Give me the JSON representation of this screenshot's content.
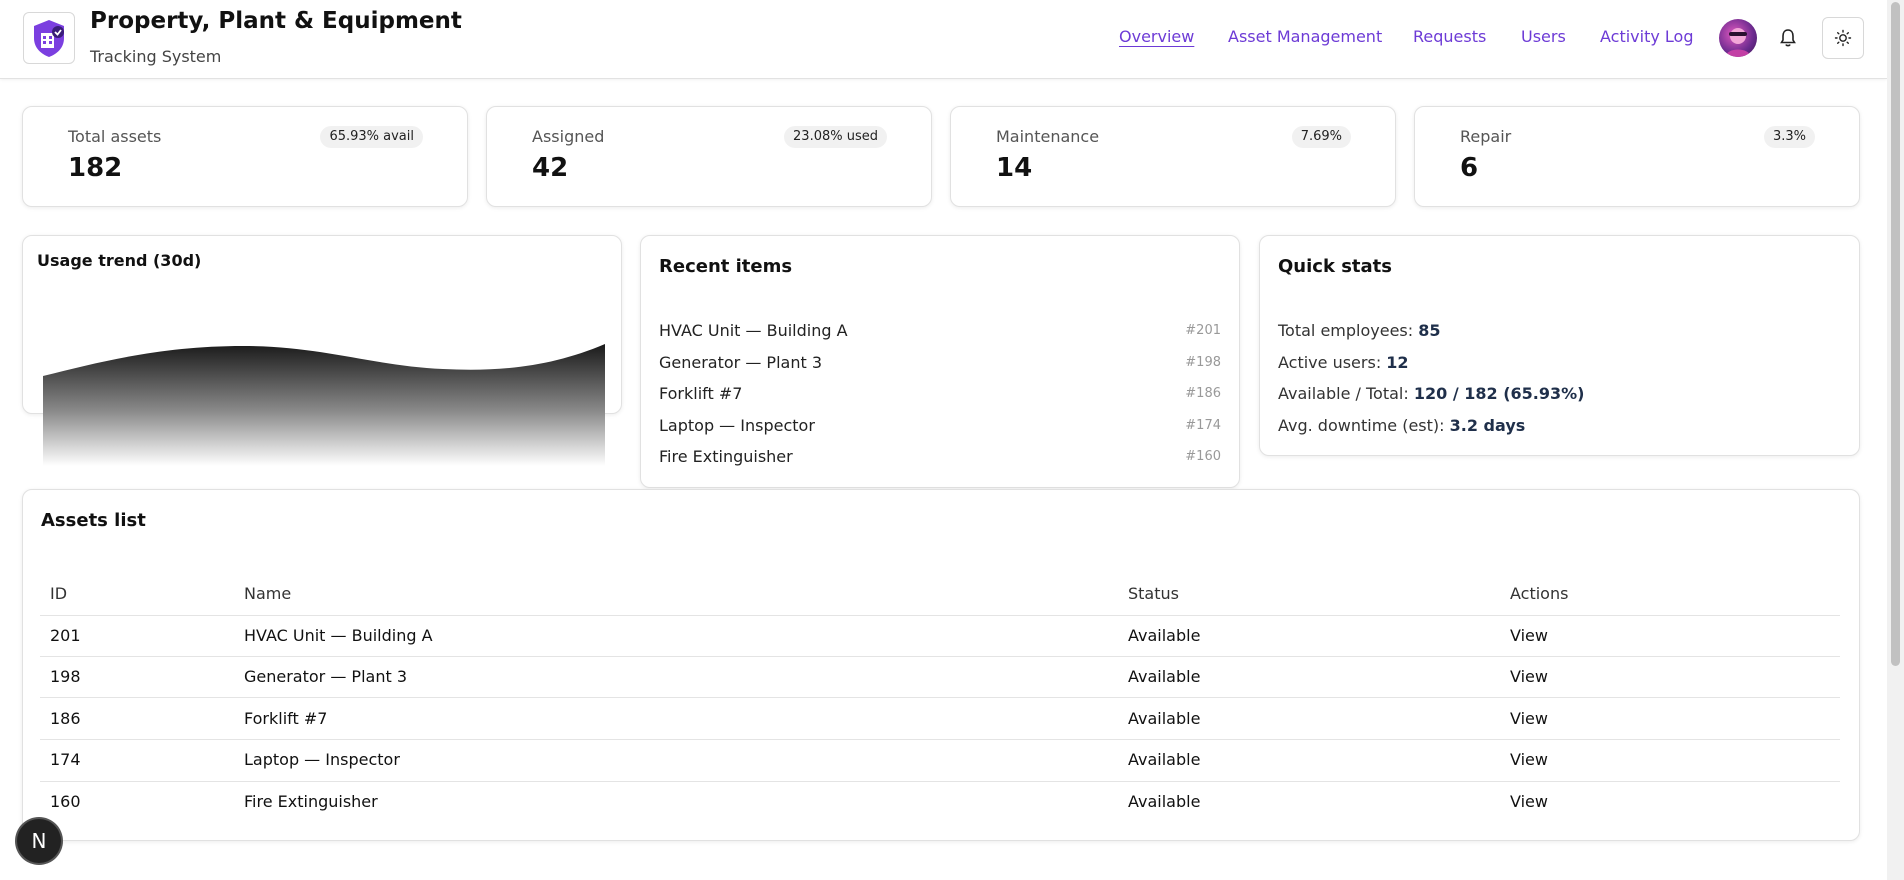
{
  "header": {
    "title": "Property, Plant & Equipment",
    "subtitle": "Tracking System",
    "nav": [
      "Overview",
      "Asset Management",
      "Requests",
      "Users",
      "Activity Log"
    ],
    "active_nav": "Overview",
    "accent_color": "#6d3bd6"
  },
  "stats": [
    {
      "label": "Total assets",
      "value": "182",
      "badge": "65.93% avail"
    },
    {
      "label": "Assigned",
      "value": "42",
      "badge": "23.08% used"
    },
    {
      "label": "Maintenance",
      "value": "14",
      "badge": "7.69%"
    },
    {
      "label": "Repair",
      "value": "6",
      "badge": "3.3%"
    }
  ],
  "usage": {
    "title": "Usage trend (30d)"
  },
  "recent": {
    "title": "Recent items",
    "items": [
      {
        "name": "HVAC Unit — Building A",
        "id": "#201"
      },
      {
        "name": "Generator — Plant 3",
        "id": "#198"
      },
      {
        "name": "Forklift #7",
        "id": "#186"
      },
      {
        "name": "Laptop — Inspector",
        "id": "#174"
      },
      {
        "name": "Fire Extinguisher",
        "id": "#160"
      }
    ]
  },
  "quick_stats": {
    "title": "Quick stats",
    "rows": [
      {
        "label": "Total employees:",
        "value": "85"
      },
      {
        "label": "Active users:",
        "value": "12"
      },
      {
        "label": "Available / Total:",
        "value": "120 / 182 (65.93%)"
      },
      {
        "label": "Avg. downtime (est):",
        "value": "3.2 days"
      }
    ]
  },
  "assets": {
    "title": "Assets list",
    "columns": [
      "ID",
      "Name",
      "Status",
      "Actions"
    ],
    "rows": [
      {
        "id": "201",
        "name": "HVAC Unit — Building A",
        "status": "Available",
        "action": "View"
      },
      {
        "id": "198",
        "name": "Generator — Plant 3",
        "status": "Available",
        "action": "View"
      },
      {
        "id": "186",
        "name": "Forklift #7",
        "status": "Available",
        "action": "View"
      },
      {
        "id": "174",
        "name": "Laptop — Inspector",
        "status": "Available",
        "action": "View"
      },
      {
        "id": "160",
        "name": "Fire Extinguisher",
        "status": "Available",
        "action": "View"
      }
    ]
  },
  "dev_badge": "N"
}
